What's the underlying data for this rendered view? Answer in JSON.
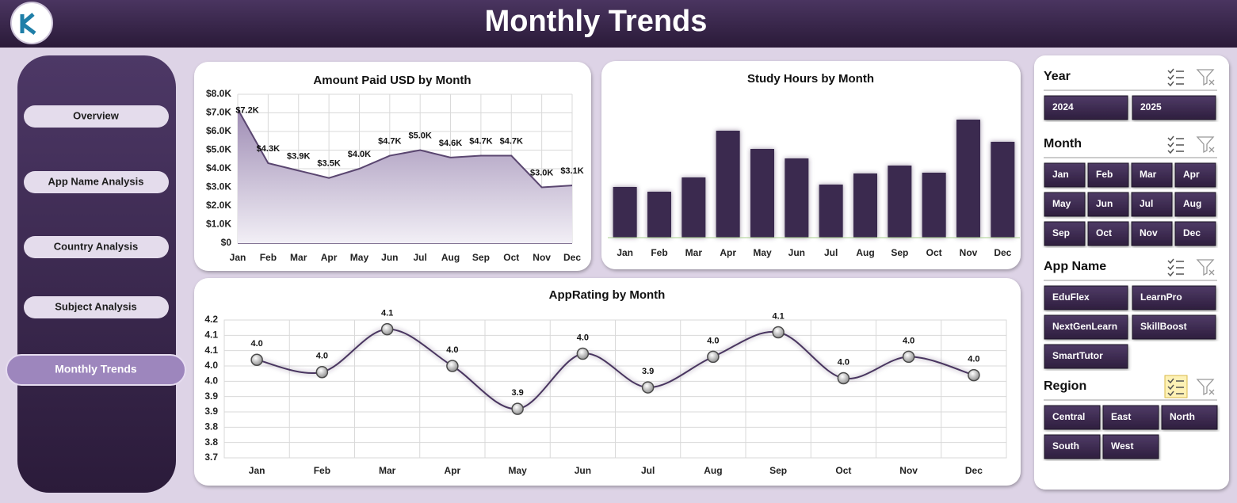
{
  "header": {
    "title": "Monthly Trends"
  },
  "nav": {
    "items": [
      "Overview",
      "App Name Analysis",
      "Country Analysis",
      "Subject Analysis",
      "Monthly Trends"
    ],
    "active": 4
  },
  "chart_data": [
    {
      "type": "area",
      "title": "Amount Paid USD by Month",
      "categories": [
        "Jan",
        "Feb",
        "Mar",
        "Apr",
        "May",
        "Jun",
        "Jul",
        "Aug",
        "Sep",
        "Oct",
        "Nov",
        "Dec"
      ],
      "values": [
        7200,
        4300,
        3900,
        3500,
        4000,
        4700,
        5000,
        4600,
        4700,
        4700,
        3000,
        3100
      ],
      "value_labels": [
        "$7.2K",
        "$4.3K",
        "$3.9K",
        "$3.5K",
        "$4.0K",
        "$4.7K",
        "$5.0K",
        "$4.6K",
        "$4.7K",
        "$4.7K",
        "$3.0K",
        "$3.1K"
      ],
      "color": "#5a4670",
      "ylim": [
        0,
        8000
      ],
      "yticks": [
        {
          "value": 0,
          "label": "$0"
        },
        {
          "value": 1000,
          "label": "$1.0K"
        },
        {
          "value": 2000,
          "label": "$2.0K"
        },
        {
          "value": 3000,
          "label": "$3.0K"
        },
        {
          "value": 4000,
          "label": "$4.0K"
        },
        {
          "value": 5000,
          "label": "$5.0K"
        },
        {
          "value": 6000,
          "label": "$6.0K"
        },
        {
          "value": 7000,
          "label": "$7.0K"
        },
        {
          "value": 8000,
          "label": "$8.0K"
        }
      ],
      "grid": true
    },
    {
      "type": "bar",
      "title": "Study Hours by Month",
      "categories": [
        "Jan",
        "Feb",
        "Mar",
        "Apr",
        "May",
        "Jun",
        "Jul",
        "Aug",
        "Sep",
        "Oct",
        "Nov",
        "Dec"
      ],
      "values": [
        64,
        58,
        76,
        135,
        112,
        100,
        67,
        81,
        91,
        82,
        149,
        121
      ],
      "color": "#3b2a4f",
      "ylim": [
        0,
        160
      ],
      "grid": false
    },
    {
      "type": "line",
      "title": "AppRating by Month",
      "categories": [
        "Jan",
        "Feb",
        "Mar",
        "Apr",
        "May",
        "Jun",
        "Jul",
        "Aug",
        "Sep",
        "Oct",
        "Nov",
        "Dec"
      ],
      "values": [
        4.02,
        3.98,
        4.12,
        4.0,
        3.86,
        4.04,
        3.93,
        4.03,
        4.11,
        3.96,
        4.03,
        3.97
      ],
      "value_labels": [
        "4.0",
        "4.0",
        "4.1",
        "4.0",
        "3.9",
        "4.0",
        "3.9",
        "4.0",
        "4.1",
        "4.0",
        "4.0",
        "4.0"
      ],
      "color": "#4a3560",
      "smooth": true,
      "ylim": [
        3.7,
        4.15
      ],
      "yticks": [
        3.7,
        {
          "value": 3.75,
          "label": "3.8"
        },
        3.8,
        {
          "value": 3.85,
          "label": "3.9"
        },
        3.9,
        {
          "value": 3.95,
          "label": "4.0"
        },
        {
          "value": 4.0,
          "label": "4.0"
        },
        {
          "value": 4.05,
          "label": "4.1"
        },
        4.1,
        {
          "value": 4.15,
          "label": "4.2"
        }
      ],
      "grid": true
    }
  ],
  "slicers": [
    {
      "title": "Year",
      "items": [
        "2024",
        "2025"
      ]
    },
    {
      "title": "Month",
      "items": [
        "Jan",
        "Feb",
        "Mar",
        "Apr",
        "May",
        "Jun",
        "Jul",
        "Aug",
        "Sep",
        "Oct",
        "Nov",
        "Dec"
      ]
    },
    {
      "title": "App Name",
      "items": [
        "EduFlex",
        "LearnPro",
        "NextGenLearn",
        "SkillBoost",
        "SmartTutor"
      ]
    },
    {
      "title": "Region",
      "items": [
        "Central",
        "East",
        "North",
        "South",
        "West"
      ]
    }
  ]
}
